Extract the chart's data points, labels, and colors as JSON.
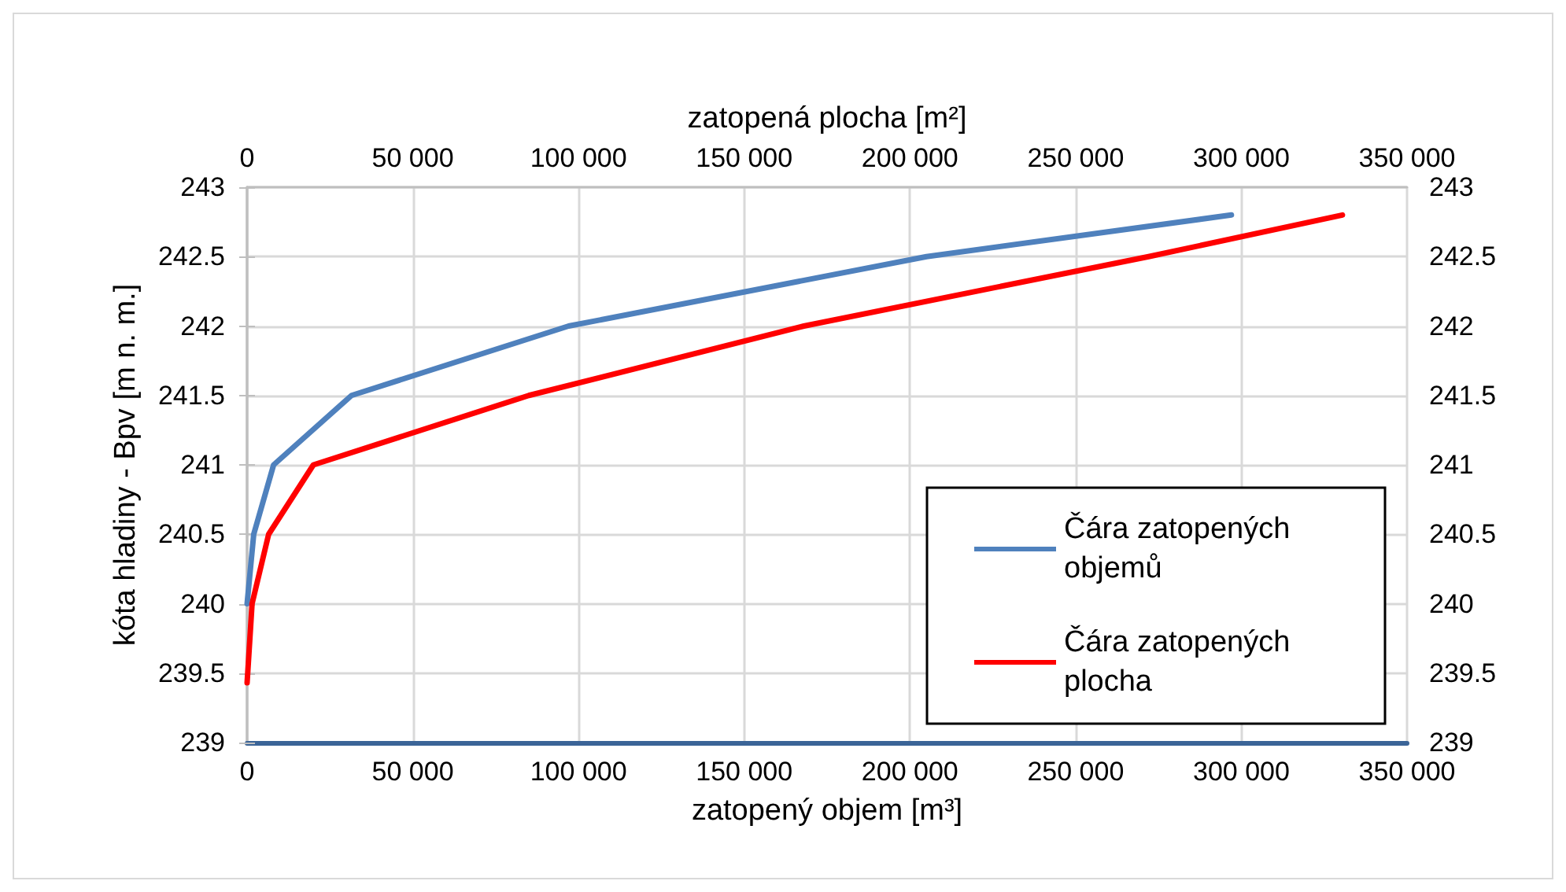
{
  "chart_data": {
    "type": "line",
    "xlabel": "zatopený objem [m³]",
    "x2label": "zatopená plocha [m²]",
    "ylabel": "kóta hladiny - Bpv [m n. m.]",
    "series": [
      {
        "name": "Čára zatopených objemů",
        "color": "#4f81bd",
        "x": [
          0,
          2000,
          8000,
          31500,
          97000,
          205000,
          297000
        ],
        "values": [
          240,
          240.5,
          241,
          241.5,
          242,
          242.5,
          242.8
        ]
      },
      {
        "name": "Čára zatopených plocha",
        "color": "#ff0000",
        "x": [
          0,
          1500,
          6500,
          20000,
          85000,
          168000,
          272000,
          330500
        ],
        "values": [
          239.43,
          240,
          240.5,
          241,
          241.5,
          242,
          242.5,
          242.8
        ]
      }
    ],
    "xlim": [
      0,
      350000
    ],
    "xticks": [
      0,
      {
        "value": 50000,
        "label": "50 000"
      },
      {
        "value": 100000,
        "label": "100 000"
      },
      {
        "value": 150000,
        "label": "150 000"
      },
      {
        "value": 200000,
        "label": "200 000"
      },
      {
        "value": 250000,
        "label": "250 000"
      },
      {
        "value": 300000,
        "label": "300 000"
      },
      {
        "value": 350000,
        "label": "350 000"
      }
    ],
    "x2lim": [
      0,
      350000
    ],
    "x2ticks": [
      0,
      {
        "value": 50000,
        "label": "50 000"
      },
      {
        "value": 100000,
        "label": "100 000"
      },
      {
        "value": 150000,
        "label": "150 000"
      },
      {
        "value": 200000,
        "label": "200 000"
      },
      {
        "value": 250000,
        "label": "250 000"
      },
      {
        "value": 300000,
        "label": "300 000"
      },
      {
        "value": 350000,
        "label": "350 000"
      }
    ],
    "ylim": [
      239,
      243
    ],
    "yticks": [
      239,
      239.5,
      240,
      240.5,
      241,
      241.5,
      242,
      242.5,
      243
    ],
    "y2lim": [
      239,
      243
    ],
    "y2ticks": [
      239,
      239.5,
      240,
      240.5,
      241,
      241.5,
      242,
      242.5,
      243
    ],
    "grid": true,
    "legend": "bottom right",
    "marker": "none",
    "line_style": "solid"
  }
}
